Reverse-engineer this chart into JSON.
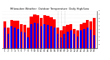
{
  "title": "Milwaukee Weather  Outdoor Temperature  Daily High/Low",
  "background_color": "#ffffff",
  "high_color": "#ff0000",
  "low_color": "#0000ff",
  "ylim": [
    0,
    100
  ],
  "ytick_positions": [
    10,
    20,
    30,
    40,
    50,
    60,
    70,
    80,
    90,
    100
  ],
  "days": [
    "1",
    "2",
    "3",
    "4",
    "5",
    "6",
    "7",
    "8",
    "9",
    "10",
    "11",
    "12",
    "13",
    "14",
    "15",
    "16",
    "17",
    "18",
    "19",
    "20",
    "21",
    "22",
    "23",
    "24",
    "25",
    "26",
    "27",
    "28"
  ],
  "highs": [
    72,
    55,
    75,
    73,
    73,
    65,
    62,
    55,
    85,
    90,
    88,
    80,
    88,
    87,
    82,
    78,
    55,
    48,
    58,
    62,
    65,
    52,
    48,
    65,
    68,
    75,
    72,
    80
  ],
  "lows": [
    55,
    38,
    58,
    55,
    52,
    44,
    42,
    28,
    65,
    68,
    66,
    58,
    65,
    62,
    58,
    55,
    38,
    28,
    38,
    44,
    48,
    38,
    30,
    48,
    52,
    55,
    50,
    35
  ],
  "dotted_cols": [
    16,
    17,
    18
  ],
  "bar_width": 0.45
}
